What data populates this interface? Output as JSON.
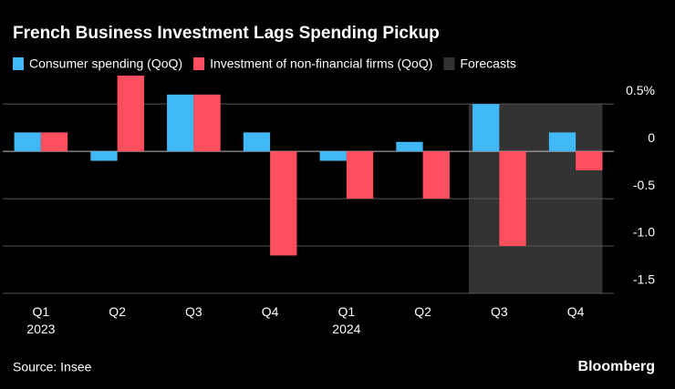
{
  "chart_data": {
    "type": "bar",
    "title": "French Business Investment Lags Spending Pickup",
    "categories": [
      "Q1 2023",
      "Q2",
      "Q3",
      "Q4",
      "Q1 2024",
      "Q2",
      "Q3",
      "Q4"
    ],
    "series": [
      {
        "name": "Consumer spending (QoQ)",
        "color": "#3fb8f5",
        "values": [
          0.2,
          -0.1,
          0.6,
          0.2,
          -0.1,
          0.1,
          0.5,
          0.2
        ]
      },
      {
        "name": "Investment of non-financial firms (QoQ)",
        "color": "#ff4f5e",
        "values": [
          0.2,
          0.8,
          0.6,
          -1.1,
          -0.5,
          -0.5,
          -1.0,
          -0.2
        ]
      }
    ],
    "shaded": {
      "name": "Forecasts",
      "color": "#333333",
      "from": 6,
      "to": 7
    },
    "ylim": [
      -1.5,
      0.8
    ],
    "yticks": [
      {
        "value": 0.5,
        "label": "0.5%"
      },
      0,
      -0.5,
      {
        "value": -1.0,
        "label": "-1.0"
      },
      -1.5
    ],
    "grid": true,
    "source": "Source: Insee",
    "brand": "Bloomberg"
  }
}
